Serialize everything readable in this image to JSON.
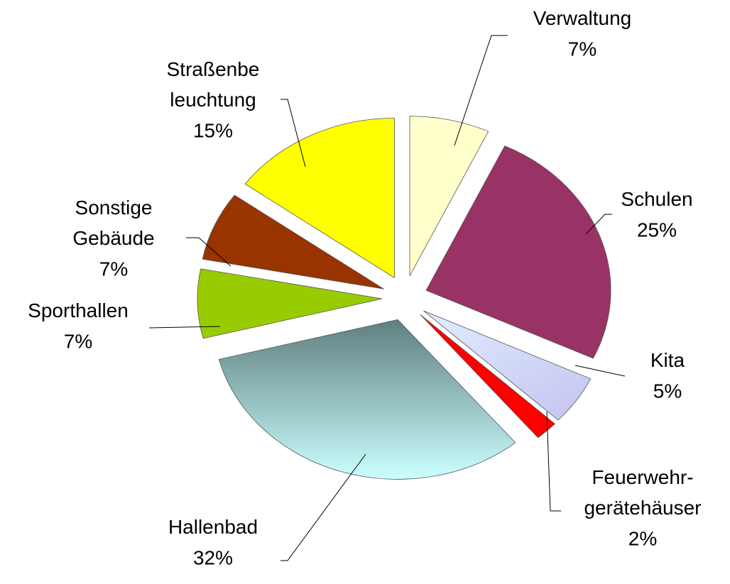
{
  "chart_data": {
    "type": "pie",
    "categories": [
      "Verwaltung",
      "Schulen",
      "Kita",
      "Feuerwehr-\ngerätehäuser",
      "Hallenbad",
      "Sporthallen",
      "Sonstige\nGebäude",
      "Straßenbe\nleuchtung"
    ],
    "values": [
      7,
      25,
      5,
      2,
      32,
      7,
      7,
      15
    ],
    "value_labels": [
      "7%",
      "25%",
      "5%",
      "2%",
      "32%",
      "7%",
      "7%",
      "15%"
    ],
    "colors": [
      "#ffffcc",
      "#993366",
      "#cce0ff",
      "#ff0000",
      "#99e6e6",
      "#99cc00",
      "#993300",
      "#ffff00"
    ]
  }
}
